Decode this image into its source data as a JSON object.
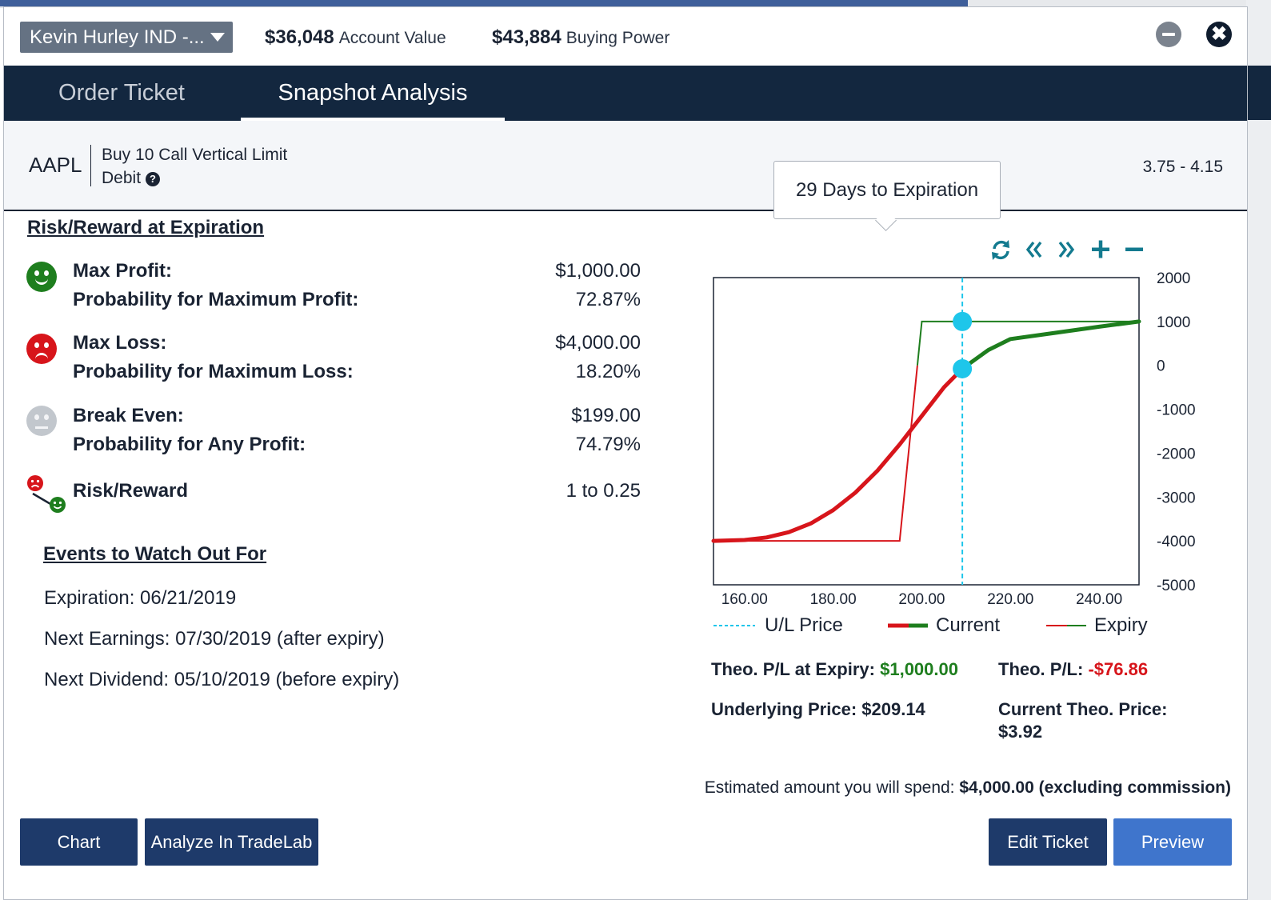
{
  "header": {
    "account_name": "Kevin Hurley IND -...",
    "account_value": "$36,048",
    "account_value_label": "Account Value",
    "buying_power": "$43,884",
    "buying_power_label": "Buying Power",
    "close_glyph": "✖"
  },
  "tabs": [
    {
      "label": "Order Ticket",
      "active": false
    },
    {
      "label": "Snapshot Analysis",
      "active": true
    }
  ],
  "order": {
    "symbol": "AAPL",
    "description_line1": "Buy 10 Call Vertical Limit",
    "description_line2": "Debit",
    "help_glyph": "?",
    "price_range": "3.75 - 4.15"
  },
  "tooltip": "29 Days to Expiration",
  "risk_reward": {
    "title": "Risk/Reward at Expiration",
    "max_profit_label": "Max Profit:",
    "max_profit": "$1,000.00",
    "prob_max_profit_label": "Probability for Maximum Profit:",
    "prob_max_profit": "72.87%",
    "max_loss_label": "Max Loss:",
    "max_loss": "$4,000.00",
    "prob_max_loss_label": "Probability for Maximum Loss:",
    "prob_max_loss": "18.20%",
    "break_even_label": "Break Even:",
    "break_even": "$199.00",
    "prob_any_profit_label": "Probability for Any Profit:",
    "prob_any_profit": "74.79%",
    "ratio_label": "Risk/Reward",
    "ratio": "1 to 0.25"
  },
  "events": {
    "title": "Events to Watch Out For",
    "expiration": "Expiration: 06/21/2019",
    "earnings": "Next Earnings: 07/30/2019 (after expiry)",
    "dividend": "Next Dividend: 05/10/2019 (before expiry)"
  },
  "chart_tools": [
    "refresh-icon",
    "double-chevron-left-icon",
    "double-chevron-right-icon",
    "plus-icon",
    "minus-icon"
  ],
  "chart_data": {
    "type": "line",
    "xlim": [
      153,
      249
    ],
    "ylim": [
      -5000,
      2000
    ],
    "x_ticks": [
      "160.00",
      "180.00",
      "200.00",
      "220.00",
      "240.00"
    ],
    "x_tick_values": [
      160,
      180,
      200,
      220,
      240
    ],
    "y_ticks": [
      "2000",
      "1000",
      "0",
      "-1000",
      "-2000",
      "-3000",
      "-4000",
      "-5000"
    ],
    "y_tick_values": [
      2000,
      1000,
      0,
      -1000,
      -2000,
      -3000,
      -4000,
      -5000
    ],
    "underlying_price": 209.14,
    "legend": [
      "U/L Price",
      "Current",
      "Expiry"
    ],
    "series": [
      {
        "name": "Expiry",
        "color": "#d7151b",
        "x": [
          153,
          195,
          199,
          200,
          249
        ],
        "y": [
          -4000,
          -4000,
          0,
          1000,
          1000
        ]
      },
      {
        "name": "Current",
        "color": "#d7151b",
        "x": [
          153,
          160,
          165,
          170,
          175,
          180,
          185,
          190,
          195,
          200,
          205,
          209.14,
          215,
          220,
          230,
          240,
          249
        ],
        "y": [
          -4000,
          -3980,
          -3920,
          -3800,
          -3600,
          -3300,
          -2900,
          -2400,
          -1800,
          -1150,
          -500,
          -77,
          350,
          600,
          740,
          880,
          1000
        ],
        "split_x": 209.14,
        "split_color": "#1e7e1e"
      }
    ],
    "markers": [
      {
        "x": 209.14,
        "y": 1000
      },
      {
        "x": 209.14,
        "y": -77
      }
    ]
  },
  "theo": {
    "pl_expiry_label": "Theo. P/L at Expiry:",
    "pl_expiry": "$1,000.00",
    "pl_label": "Theo. P/L:",
    "pl": "-$76.86",
    "underlying_label": "Underlying Price: $209.14",
    "current_price_label": "Current Theo. Price:",
    "current_price": "$3.92"
  },
  "estimate": {
    "label": "Estimated amount you will spend:",
    "value": "$4,000.00 (excluding commission)"
  },
  "buttons": {
    "chart": "Chart",
    "tradelab": "Analyze In TradeLab",
    "edit": "Edit Ticket",
    "preview": "Preview"
  },
  "colors": {
    "navy": "#13273f",
    "profit_green": "#1e7e1e",
    "loss_red": "#d7151b",
    "marker_cyan": "#1ec6ea",
    "primary_button": "#3f75cc",
    "secondary_button": "#1e3a6a"
  }
}
